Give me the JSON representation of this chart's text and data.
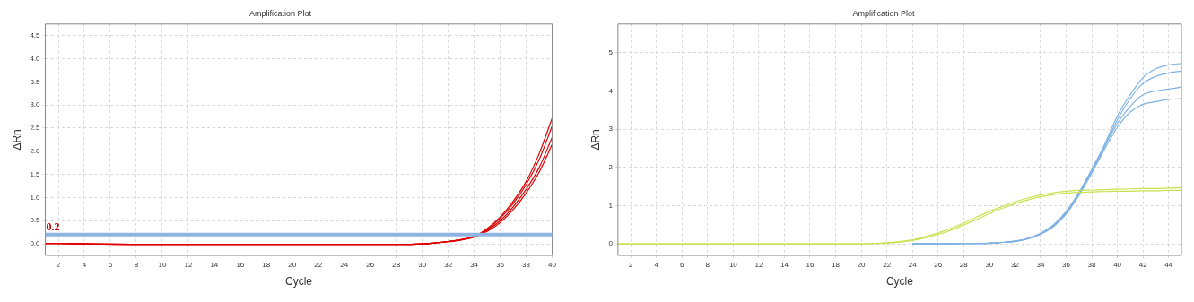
{
  "chart_data": [
    {
      "type": "line",
      "title": "Amplification Plot",
      "xlabel": "Cycle",
      "ylabel": "ΔRn",
      "x": [
        1,
        4,
        8,
        12,
        16,
        20,
        24,
        28,
        30,
        31,
        32,
        33,
        34,
        35,
        36,
        37,
        38,
        39,
        40
      ],
      "series": [
        {
          "color": "#e00000",
          "values": [
            0.01,
            0,
            -0.01,
            -0.01,
            -0.01,
            -0.01,
            -0.01,
            -0.01,
            0.0,
            0.02,
            0.05,
            0.09,
            0.16,
            0.33,
            0.58,
            0.92,
            1.35,
            1.95,
            2.72
          ]
        },
        {
          "color": "#e00000",
          "values": [
            0.01,
            0,
            -0.01,
            -0.01,
            -0.01,
            -0.01,
            -0.01,
            -0.01,
            0.0,
            0.02,
            0.05,
            0.09,
            0.16,
            0.31,
            0.55,
            0.87,
            1.28,
            1.82,
            2.55
          ]
        },
        {
          "color": "#e00000",
          "values": [
            0.01,
            0,
            -0.01,
            -0.01,
            -0.01,
            -0.01,
            -0.01,
            -0.01,
            0.0,
            0.02,
            0.05,
            0.09,
            0.15,
            0.29,
            0.5,
            0.8,
            1.18,
            1.65,
            2.3
          ]
        },
        {
          "color": "#e00000",
          "values": [
            0.01,
            0,
            -0.01,
            -0.01,
            -0.01,
            -0.01,
            -0.01,
            -0.01,
            0.0,
            0.02,
            0.04,
            0.08,
            0.15,
            0.27,
            0.46,
            0.74,
            1.1,
            1.55,
            2.15
          ]
        }
      ],
      "xlim": [
        1,
        40
      ],
      "xticks": [
        2,
        4,
        6,
        8,
        10,
        12,
        14,
        16,
        18,
        20,
        22,
        24,
        26,
        28,
        30,
        32,
        34,
        36,
        38,
        40
      ],
      "ylim": [
        -0.25,
        4.75
      ],
      "yticks": [
        {
          "value": 0,
          "label": "0.0"
        },
        {
          "value": 0.5,
          "label": "0.5"
        },
        {
          "value": 1,
          "label": "1.0"
        },
        {
          "value": 1.5,
          "label": "1.5"
        },
        {
          "value": 2,
          "label": "2.0"
        },
        {
          "value": 2.5,
          "label": "2.5"
        },
        {
          "value": 3,
          "label": "3.0"
        },
        {
          "value": 3.5,
          "label": "3.5"
        },
        {
          "value": 4,
          "label": "4.0"
        },
        {
          "value": 4.5,
          "label": "4.5"
        }
      ],
      "ref_lines": [
        {
          "axis": "y",
          "value": 0.2,
          "label": "0.2",
          "color": "#8db4e2"
        }
      ],
      "grid": true,
      "legend": false,
      "marker": "none",
      "line_style": "solid"
    },
    {
      "type": "line",
      "title": "Amplification Plot",
      "xlabel": "Cycle",
      "ylabel": "ΔRn",
      "x": [
        1,
        5,
        10,
        15,
        20,
        21,
        22,
        23,
        24,
        25,
        26,
        27,
        28,
        29,
        30,
        31,
        32,
        33,
        34,
        35,
        36,
        37,
        38,
        39,
        40,
        41,
        42,
        43,
        44,
        45
      ],
      "series": [
        {
          "color": "#c5e34f",
          "values": [
            0,
            0,
            0,
            0,
            0,
            0.01,
            0.03,
            0.06,
            0.11,
            0.19,
            0.29,
            0.41,
            0.55,
            0.7,
            0.85,
            0.98,
            1.1,
            1.2,
            1.28,
            1.34,
            1.38,
            1.4,
            1.41,
            1.42,
            1.43,
            1.44,
            1.45,
            1.45,
            1.46,
            1.47
          ]
        },
        {
          "color": "#c5e34f",
          "values": [
            0,
            0,
            0,
            0,
            0,
            0.01,
            0.02,
            0.05,
            0.09,
            0.16,
            0.25,
            0.36,
            0.5,
            0.64,
            0.79,
            0.93,
            1.05,
            1.15,
            1.23,
            1.29,
            1.33,
            1.35,
            1.36,
            1.37,
            1.38,
            1.38,
            1.39,
            1.39,
            1.4,
            1.4
          ]
        },
        {
          "color": "#7fb2e5",
          "x": [
            24,
            25,
            26,
            27,
            28,
            29,
            30,
            31,
            32,
            33,
            34,
            35,
            36,
            37,
            38,
            39,
            40,
            41,
            42,
            43,
            44,
            45
          ],
          "values": [
            0,
            0,
            0,
            0,
            0.01,
            0.01,
            0.02,
            0.04,
            0.07,
            0.15,
            0.28,
            0.5,
            0.85,
            1.35,
            1.95,
            2.6,
            3.35,
            3.9,
            4.35,
            4.58,
            4.68,
            4.72
          ]
        },
        {
          "color": "#7fb2e5",
          "x": [
            24,
            25,
            26,
            27,
            28,
            29,
            30,
            31,
            32,
            33,
            34,
            35,
            36,
            37,
            38,
            39,
            40,
            41,
            42,
            43,
            44,
            45
          ],
          "values": [
            0,
            0,
            0,
            0,
            0.01,
            0.01,
            0.02,
            0.04,
            0.07,
            0.14,
            0.26,
            0.47,
            0.8,
            1.3,
            1.9,
            2.55,
            3.25,
            3.8,
            4.2,
            4.38,
            4.47,
            4.52
          ]
        },
        {
          "color": "#7fb2e5",
          "x": [
            24,
            25,
            26,
            27,
            28,
            29,
            30,
            31,
            32,
            33,
            34,
            35,
            36,
            37,
            38,
            39,
            40,
            41,
            42,
            43,
            44,
            45
          ],
          "values": [
            0,
            0,
            0,
            0,
            0.01,
            0.01,
            0.02,
            0.04,
            0.07,
            0.14,
            0.27,
            0.48,
            0.82,
            1.32,
            1.92,
            2.55,
            3.15,
            3.6,
            3.9,
            4.0,
            4.05,
            4.1
          ]
        },
        {
          "color": "#7fb2e5",
          "x": [
            24,
            25,
            26,
            27,
            28,
            29,
            30,
            31,
            32,
            33,
            34,
            35,
            36,
            37,
            38,
            39,
            40,
            41,
            42,
            43,
            44,
            45
          ],
          "values": [
            0,
            0,
            0,
            0,
            0.01,
            0.01,
            0.02,
            0.04,
            0.06,
            0.13,
            0.25,
            0.45,
            0.78,
            1.27,
            1.85,
            2.48,
            3.05,
            3.45,
            3.65,
            3.72,
            3.78,
            3.8
          ]
        }
      ],
      "xlim": [
        1,
        45
      ],
      "xticks": [
        2,
        4,
        6,
        8,
        10,
        12,
        14,
        16,
        18,
        20,
        22,
        24,
        26,
        28,
        30,
        32,
        34,
        36,
        38,
        40,
        42,
        44
      ],
      "ylim": [
        -0.3,
        5.75
      ],
      "yticks": [
        0,
        1,
        2,
        3,
        4,
        5
      ],
      "grid": true,
      "legend": false,
      "marker": "none",
      "line_style": "solid"
    }
  ]
}
